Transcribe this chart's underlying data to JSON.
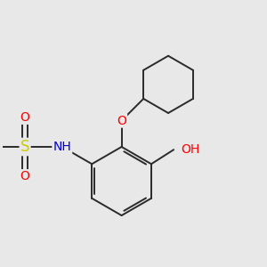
{
  "bg_color": "#e8e8e8",
  "atom_colors": {
    "C": "#1a1a1a",
    "N": "#0000cd",
    "O": "#ff0000",
    "S": "#cccc00",
    "H": "#708090"
  },
  "bond_color": "#2a2a2a",
  "bond_width": 1.4,
  "font_size": 9,
  "fig_width": 3.0,
  "fig_height": 3.0,
  "dpi": 100,
  "xlim": [
    -1.0,
    4.5
  ],
  "ylim": [
    -1.8,
    3.2
  ]
}
